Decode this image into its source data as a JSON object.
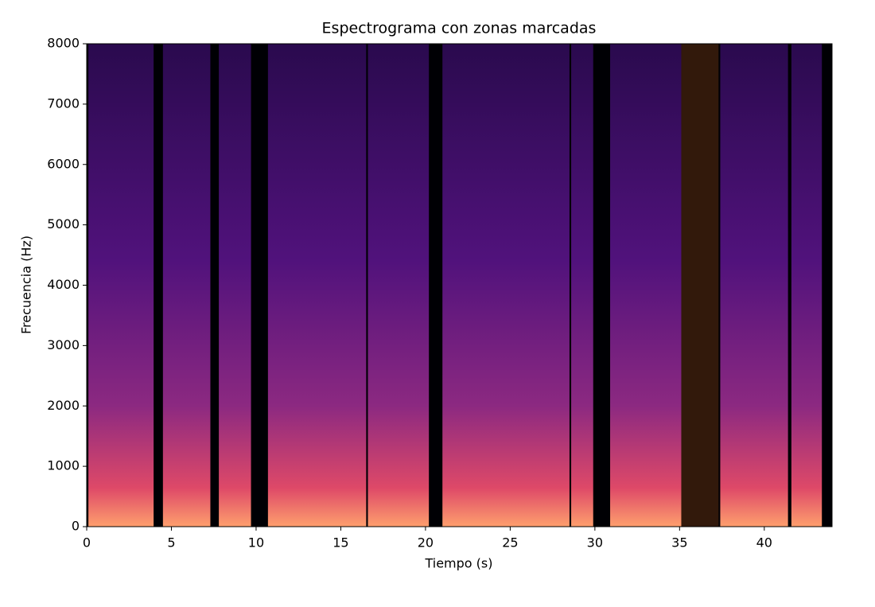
{
  "chart_data": {
    "type": "spectrogram",
    "title": "Espectrograma con zonas marcadas",
    "x_label": "Tiempo (s)",
    "y_label": "Frecuencia (Hz)",
    "xlim": [
      0,
      44
    ],
    "ylim": [
      0,
      8000
    ],
    "xticks": [
      0,
      5,
      10,
      15,
      20,
      25,
      30,
      35,
      40
    ],
    "yticks": [
      0,
      1000,
      2000,
      3000,
      4000,
      5000,
      6000,
      7000,
      8000
    ],
    "segments": [
      [
        0.1,
        3.95
      ],
      [
        4.5,
        7.3
      ],
      [
        7.8,
        9.7
      ],
      [
        10.7,
        16.5
      ],
      [
        16.6,
        20.2
      ],
      [
        21.0,
        28.5
      ],
      [
        28.6,
        29.9
      ],
      [
        30.9,
        35.1
      ],
      [
        37.4,
        41.4
      ],
      [
        41.6,
        43.4
      ]
    ],
    "marked_zones": [
      [
        35.1,
        37.3
      ]
    ],
    "zone_color": "#c8641e",
    "zone_alpha": 0.25
  }
}
